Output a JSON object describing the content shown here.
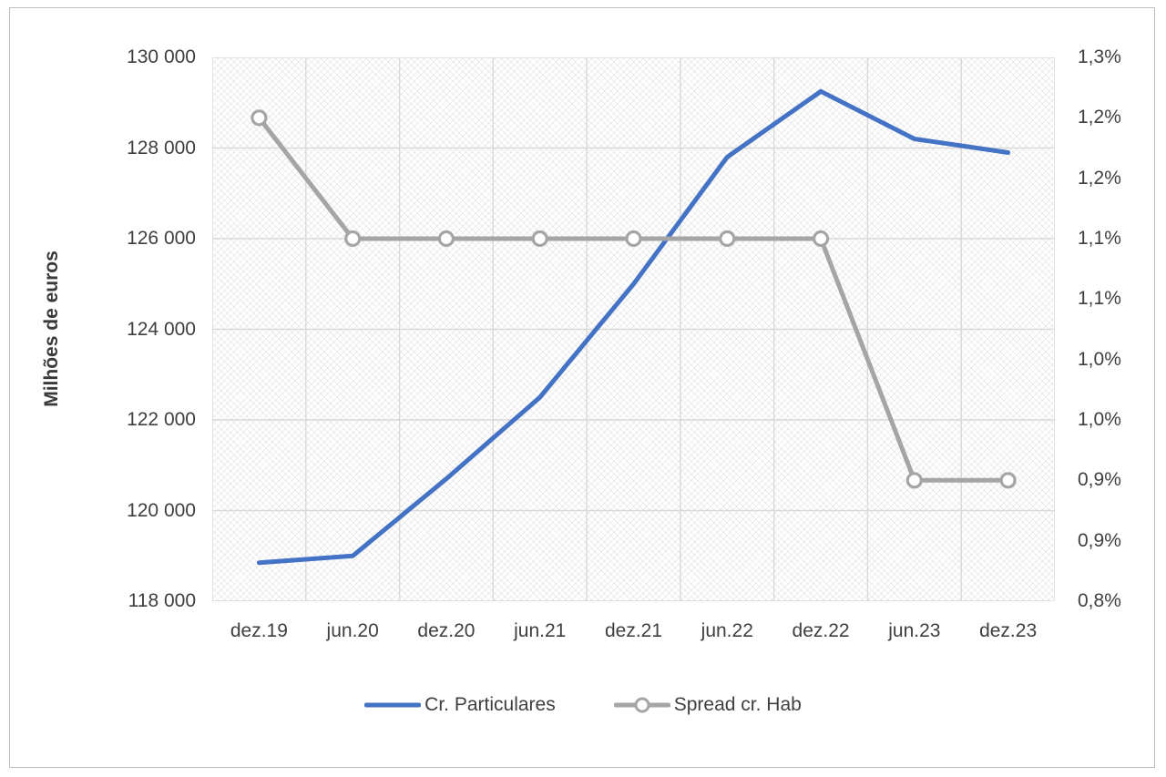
{
  "chart_data": {
    "type": "line",
    "title": "",
    "categories": [
      "dez.19",
      "jun.20",
      "dez.20",
      "jun.21",
      "dez.21",
      "jun.22",
      "dez.22",
      "jun.23",
      "dez.23"
    ],
    "series": [
      {
        "name": "Cr. Particulares",
        "axis": "left",
        "color": "#4472C4",
        "marker": "none",
        "values": [
          118850,
          119000,
          120700,
          122500,
          125000,
          127800,
          129250,
          128200,
          127900
        ]
      },
      {
        "name": "Spread cr. Hab",
        "axis": "right",
        "color": "#A5A5A5",
        "marker": "circle",
        "values": [
          1.2,
          1.1,
          1.1,
          1.1,
          1.1,
          1.1,
          1.1,
          0.9,
          0.9
        ]
      }
    ],
    "left_axis": {
      "label": "Milhões de euros",
      "min": 118000,
      "max": 130000,
      "step": 2000,
      "tick_labels": [
        "130 000",
        "128 000",
        "126 000",
        "124 000",
        "122 000",
        "120 000",
        "118 000"
      ]
    },
    "right_axis": {
      "label": "",
      "min": 0.8,
      "max": 1.25,
      "step": 0.05,
      "tick_labels": [
        "1,3%",
        "1,2%",
        "1,2%",
        "1,1%",
        "1,1%",
        "1,0%",
        "1,0%",
        "0,9%",
        "0,9%",
        "0,8%"
      ]
    },
    "legend_position": "bottom",
    "grid": true,
    "colors": {
      "blue": "#4472C4",
      "gray": "#A5A5A5",
      "grid": "#D9D9D9",
      "text": "#3F3F3F",
      "marker_fill": "#FFFFFF"
    }
  }
}
